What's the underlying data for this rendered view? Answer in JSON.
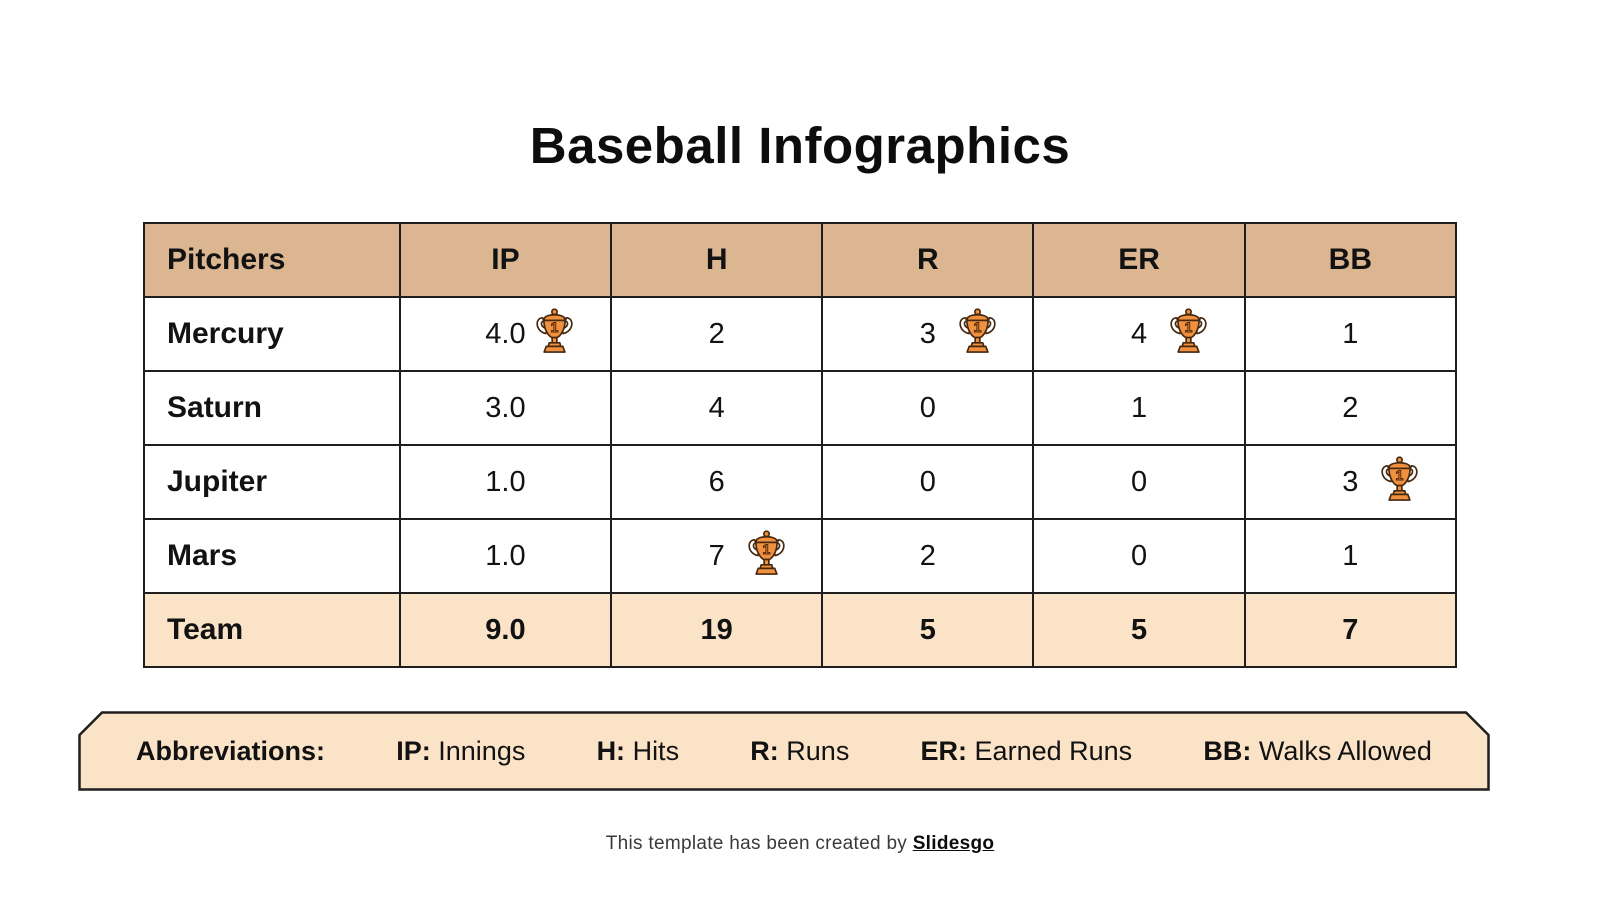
{
  "title": "Baseball Infographics",
  "colors": {
    "header_bg": "#dcb591",
    "accent_bg": "#fbe3c7",
    "border": "#1e1e1e",
    "trophy_fill": "#f0913f",
    "trophy_numeral": "#dd7526",
    "trophy_outline": "#46280f",
    "trophy_handle": "#ffffff"
  },
  "table": {
    "columns": [
      "Pitchers",
      "IP",
      "H",
      "R",
      "ER",
      "BB"
    ],
    "rows": [
      {
        "name": "Mercury",
        "values": [
          "4.0",
          "2",
          "3",
          "4",
          "1"
        ],
        "trophies": [
          true,
          false,
          true,
          true,
          false
        ]
      },
      {
        "name": "Saturn",
        "values": [
          "3.0",
          "4",
          "0",
          "1",
          "2"
        ],
        "trophies": [
          false,
          false,
          false,
          false,
          false
        ]
      },
      {
        "name": "Jupiter",
        "values": [
          "1.0",
          "6",
          "0",
          "0",
          "3"
        ],
        "trophies": [
          false,
          false,
          false,
          false,
          true
        ]
      },
      {
        "name": "Mars",
        "values": [
          "1.0",
          "7",
          "2",
          "0",
          "1"
        ],
        "trophies": [
          false,
          true,
          false,
          false,
          false
        ]
      }
    ],
    "total_row": {
      "name": "Team",
      "values": [
        "9.0",
        "19",
        "5",
        "5",
        "7"
      ]
    }
  },
  "abbreviations": {
    "label": "Abbreviations:",
    "items": [
      {
        "abbr": "IP",
        "meaning": "Innings"
      },
      {
        "abbr": "H",
        "meaning": "Hits"
      },
      {
        "abbr": "R",
        "meaning": "Runs"
      },
      {
        "abbr": "ER",
        "meaning": "Earned Runs"
      },
      {
        "abbr": "BB",
        "meaning": "Walks Allowed"
      }
    ]
  },
  "footer": {
    "text": "This template has been created by ",
    "brand": "Slidesgo"
  }
}
